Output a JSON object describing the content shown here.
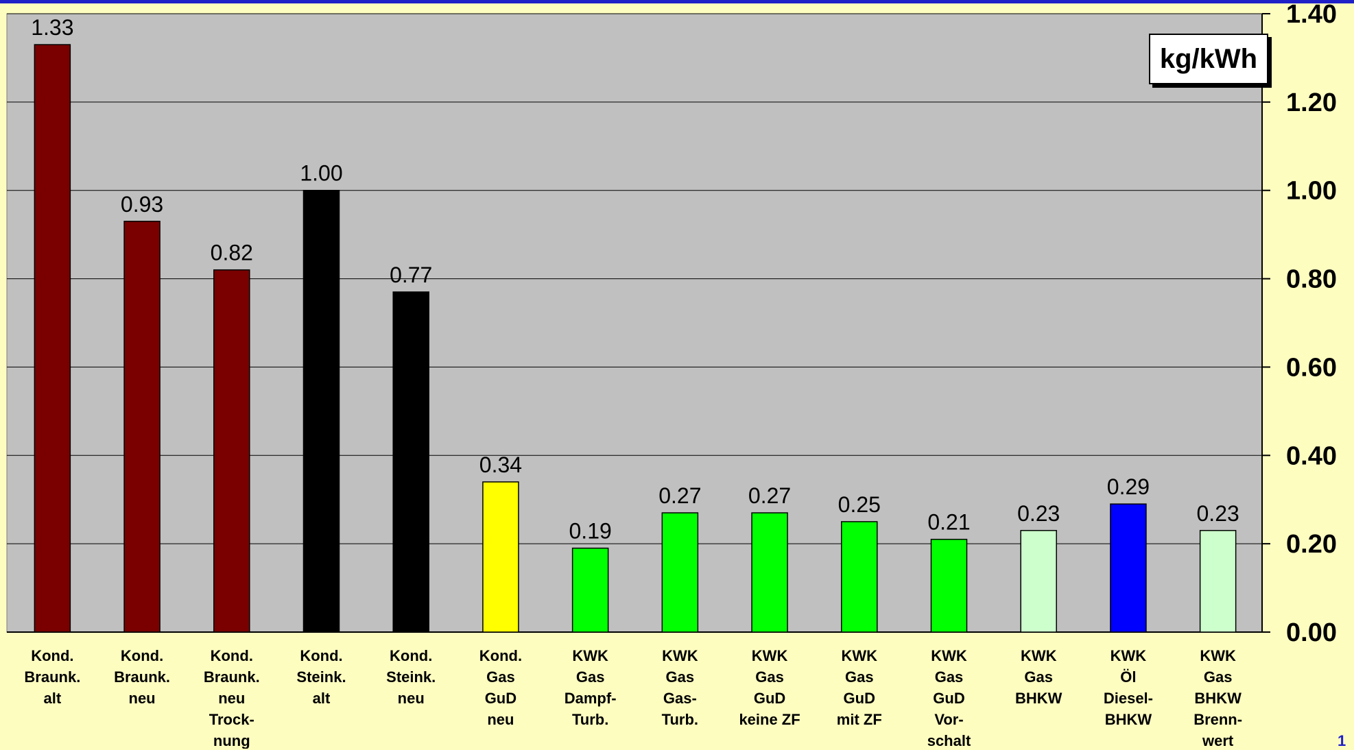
{
  "chart_data": {
    "type": "bar",
    "unit": "kg/kWh",
    "ylim": [
      0,
      1.4
    ],
    "yticks": [
      "0.00",
      "0.20",
      "0.40",
      "0.60",
      "0.80",
      "1.00",
      "1.20",
      "1.40"
    ],
    "grid": true,
    "y_axis_side": "right",
    "categories": [
      [
        "Kond.",
        "Braunk.",
        "alt"
      ],
      [
        "Kond.",
        "Braunk.",
        "neu"
      ],
      [
        "Kond.",
        "Braunk.",
        "neu",
        "Trock-",
        "nung"
      ],
      [
        "Kond.",
        "Steink.",
        "alt"
      ],
      [
        "Kond.",
        "Steink.",
        "neu"
      ],
      [
        "Kond.",
        "Gas",
        "GuD",
        "neu"
      ],
      [
        "KWK",
        "Gas",
        "Dampf-",
        "Turb."
      ],
      [
        "KWK",
        "Gas",
        "Gas-",
        "Turb."
      ],
      [
        "KWK",
        "Gas",
        "GuD",
        "keine ZF"
      ],
      [
        "KWK",
        "Gas",
        "GuD",
        "mit ZF"
      ],
      [
        "KWK",
        "Gas",
        "GuD",
        "Vor-",
        "schalt"
      ],
      [
        "KWK",
        "Gas",
        "BHKW"
      ],
      [
        "KWK",
        "Öl",
        "Diesel-",
        "BHKW"
      ],
      [
        "KWK",
        "Gas",
        "BHKW",
        "Brenn-",
        "wert"
      ]
    ],
    "values": [
      1.33,
      0.93,
      0.82,
      1.0,
      0.77,
      0.34,
      0.19,
      0.27,
      0.27,
      0.25,
      0.21,
      0.23,
      0.29,
      0.23
    ],
    "data_labels": [
      "1.33",
      "0.93",
      "0.82",
      "1.00",
      "0.77",
      "0.34",
      "0.19",
      "0.27",
      "0.27",
      "0.25",
      "0.21",
      "0.23",
      "0.29",
      "0.23"
    ],
    "colors": [
      "#7a0000",
      "#7a0000",
      "#7a0000",
      "#000000",
      "#000000",
      "#ffff00",
      "#00ff00",
      "#00ff00",
      "#00ff00",
      "#00ff00",
      "#00ff00",
      "#ccffcc",
      "#0000ff",
      "#ccffcc"
    ]
  },
  "page_number": "1"
}
